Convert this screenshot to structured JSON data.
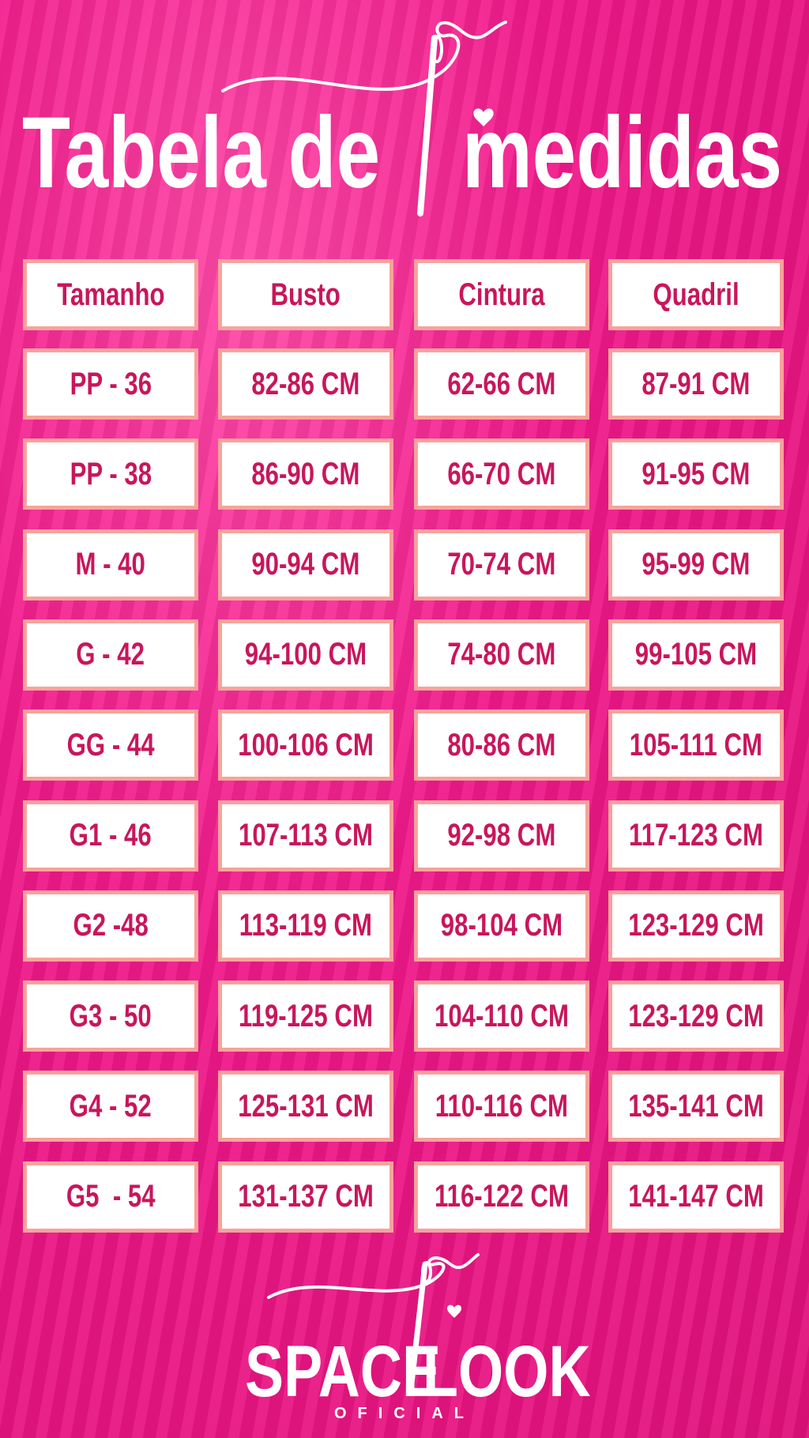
{
  "header": {
    "title_left": "Tabela de",
    "title_right": "medidas"
  },
  "table": {
    "columns": [
      "Tamanho",
      "Busto",
      "Cintura",
      "Quadril"
    ],
    "rows": [
      [
        "PP - 36",
        "82-86 CM",
        "62-66 CM",
        "87-91 CM"
      ],
      [
        "PP - 38",
        "86-90 CM",
        "66-70 CM",
        "91-95 CM"
      ],
      [
        "M - 40",
        "90-94 CM",
        "70-74 CM",
        "95-99 CM"
      ],
      [
        "G - 42",
        "94-100 CM",
        "74-80 CM",
        "99-105 CM"
      ],
      [
        "GG - 44",
        "100-106 CM",
        "80-86 CM",
        "105-111 CM"
      ],
      [
        "G1 - 46",
        "107-113 CM",
        "92-98 CM",
        "117-123 CM"
      ],
      [
        "G2 -48",
        "113-119 CM",
        "98-104 CM",
        "123-129 CM"
      ],
      [
        "G3 - 50",
        "119-125 CM",
        "104-110 CM",
        "123-129 CM"
      ],
      [
        "G4 - 52",
        "125-131 CM",
        "110-116 CM",
        "135-141 CM"
      ],
      [
        "G5  - 54",
        "131-137 CM",
        "116-122 CM",
        "141-147 CM"
      ]
    ]
  },
  "logo": {
    "left": "SPACE",
    "right": "LOOK",
    "sub": "OFICIAL"
  }
}
